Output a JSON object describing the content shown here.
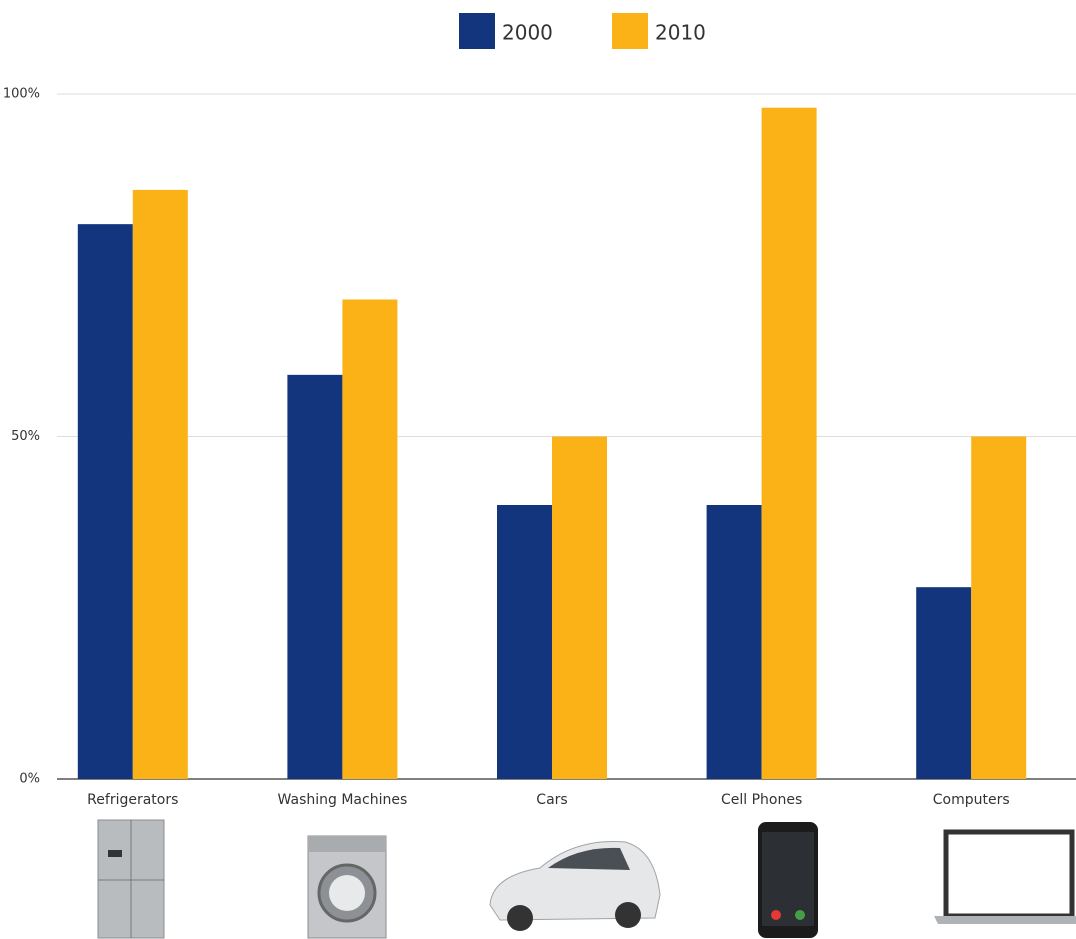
{
  "chart_data": {
    "type": "bar",
    "categories": [
      "Refrigerators",
      "Washing Machines",
      "Cars",
      "Cell Phones",
      "Computers"
    ],
    "series": [
      {
        "name": "2000",
        "color": "#12357d",
        "values": [
          81,
          59,
          40,
          40,
          28
        ]
      },
      {
        "name": "2010",
        "color": "#fbb216",
        "values": [
          86,
          70,
          50,
          98,
          50
        ]
      }
    ],
    "ylim": [
      0,
      100
    ],
    "yticks": [
      {
        "value": 0,
        "label": "0%"
      },
      {
        "value": 50,
        "label": "50%"
      },
      {
        "value": 100,
        "label": "100%"
      }
    ],
    "grid": true
  }
}
